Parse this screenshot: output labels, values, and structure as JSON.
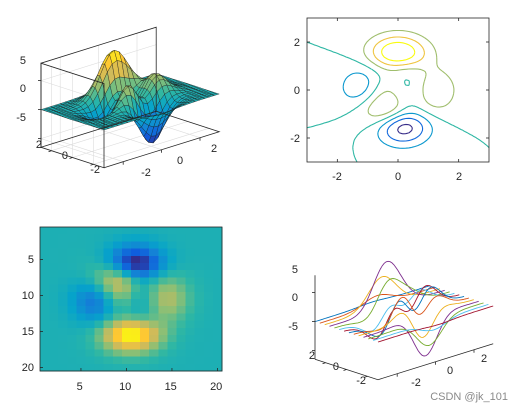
{
  "watermark": "CSDN @jk_101",
  "colors": {
    "parula": [
      "#352a87",
      "#0f5cdd",
      "#1481d6",
      "#06a4ca",
      "#2eb7a4",
      "#87bf77",
      "#d1bb59",
      "#fec832",
      "#f9fb0e"
    ],
    "lines": [
      "#0072bd",
      "#d95319",
      "#edb120",
      "#7e2f8e",
      "#77ac30",
      "#4dbeee",
      "#a2142f"
    ]
  },
  "chart_data": [
    {
      "type": "surface",
      "function": "peaks",
      "grid": [
        25,
        25
      ],
      "xlim": [
        -3,
        3
      ],
      "ylim": [
        -3,
        3
      ],
      "zlim": [
        -6.5,
        8
      ],
      "xticks": [
        "-2",
        "0",
        "2"
      ],
      "yticks": [
        "2",
        "0",
        "-2"
      ],
      "zticks": [
        "5",
        "0",
        "-5"
      ],
      "title": "",
      "xlabel": "",
      "ylabel": ""
    },
    {
      "type": "contour",
      "function": "peaks",
      "levels": [
        -6,
        -4,
        -2,
        0,
        2,
        4,
        6
      ],
      "xlim": [
        -3,
        3
      ],
      "ylim": [
        -3,
        3
      ],
      "xticks": [
        "-2",
        "0",
        "2"
      ],
      "yticks": [
        "2",
        "0",
        "-2"
      ],
      "title": "",
      "xlabel": "",
      "ylabel": ""
    },
    {
      "type": "heatmap",
      "function": "peaks",
      "grid": [
        20,
        20
      ],
      "clim": [
        -6.5,
        8
      ],
      "xticks": [
        "5",
        "10",
        "15",
        "20"
      ],
      "yticks": [
        "5",
        "10",
        "15",
        "20"
      ],
      "title": "",
      "xlabel": "",
      "ylabel": ""
    },
    {
      "type": "waterfall",
      "function": "peaks",
      "lines": 14,
      "xlim": [
        -3,
        3
      ],
      "ylim": [
        -3,
        3
      ],
      "zlim": [
        -6.5,
        8
      ],
      "xticks": [
        "-2",
        "0",
        "2"
      ],
      "yticks": [
        "2",
        "0",
        "-2"
      ],
      "zticks": [
        "5",
        "0",
        "-5"
      ],
      "title": "",
      "xlabel": "",
      "ylabel": ""
    }
  ]
}
